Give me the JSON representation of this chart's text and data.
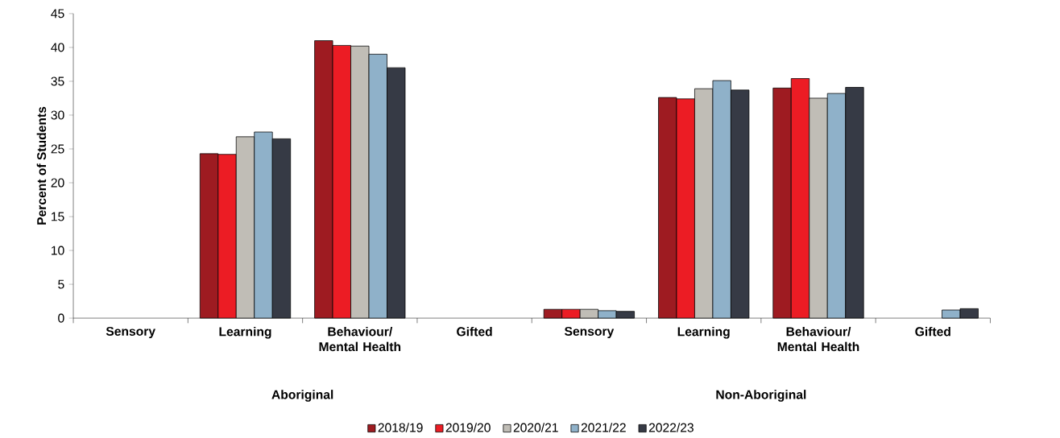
{
  "chart_data": {
    "type": "bar",
    "ylabel": "Percent of Students",
    "categories": [
      "Sensory",
      "Learning",
      "Behaviour/ Mental Health",
      "Gifted",
      "Sensory",
      "Learning",
      "Behaviour/ Mental Health",
      "Gifted"
    ],
    "annotations": [
      "Aboriginal",
      "Non-Aboriginal"
    ],
    "series": [
      {
        "name": "2018/19",
        "color": "#9e1b21",
        "values": [
          null,
          24.3,
          41.0,
          null,
          1.3,
          32.6,
          34.0,
          null
        ]
      },
      {
        "name": "2019/20",
        "color": "#ec1c24",
        "values": [
          null,
          24.2,
          40.3,
          null,
          1.3,
          32.4,
          35.4,
          null
        ]
      },
      {
        "name": "2020/21",
        "color": "#c0bdb6",
        "values": [
          null,
          26.8,
          40.2,
          null,
          1.3,
          33.9,
          32.5,
          null
        ]
      },
      {
        "name": "2021/22",
        "color": "#8fb1c9",
        "values": [
          null,
          27.5,
          39.0,
          null,
          1.1,
          35.1,
          33.2,
          1.2
        ]
      },
      {
        "name": "2022/23",
        "color": "#363a45",
        "values": [
          null,
          26.5,
          37.0,
          null,
          1.0,
          33.7,
          34.1,
          1.4
        ]
      }
    ],
    "ylim": [
      0,
      45
    ],
    "yticks": [
      0,
      5,
      10,
      15,
      20,
      25,
      30,
      35,
      40,
      45
    ],
    "grid": false,
    "legend": "bottom"
  }
}
